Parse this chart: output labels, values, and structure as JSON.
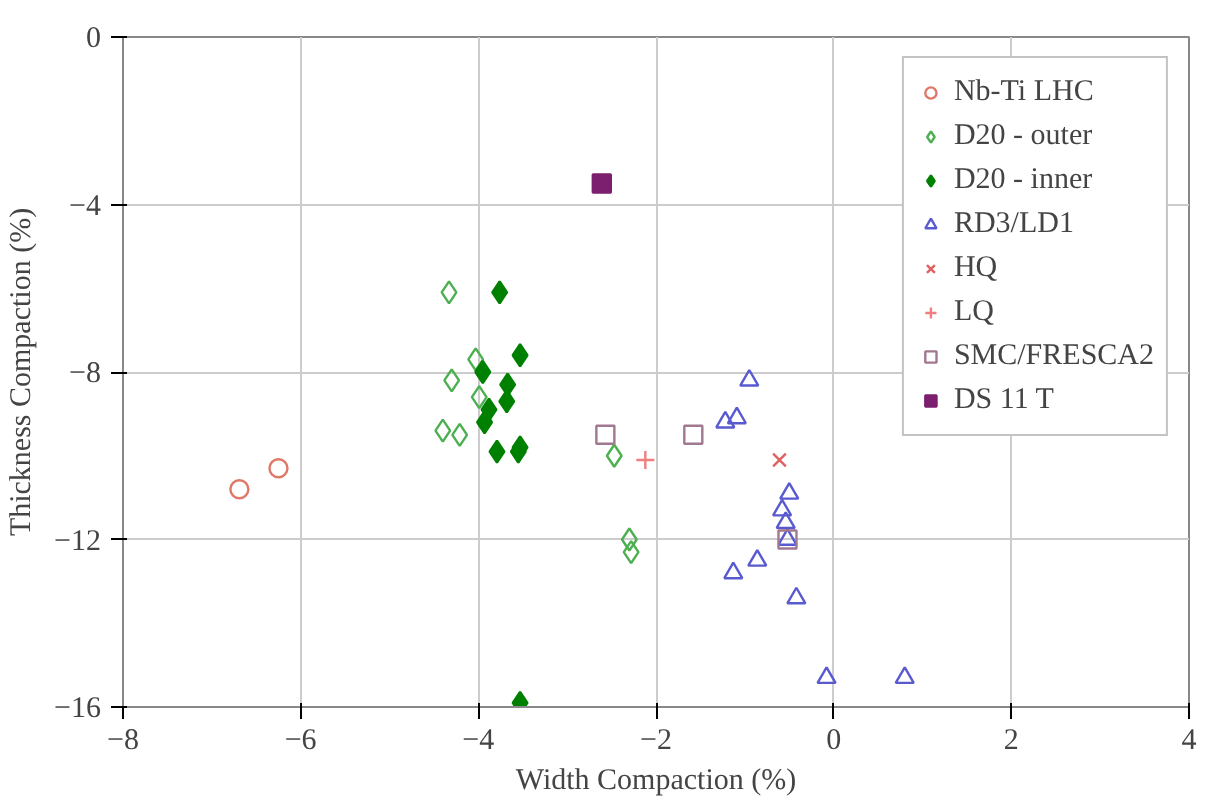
{
  "chart_data": {
    "type": "scatter",
    "xlabel": "Width Compaction (%)",
    "ylabel": "Thickness Compaction (%)",
    "xlim": [
      -8,
      4
    ],
    "ylim": [
      -16,
      0
    ],
    "xticks": [
      -8,
      -6,
      -4,
      -2,
      0,
      2,
      4
    ],
    "yticks": [
      -16,
      -12,
      -8,
      -4,
      0
    ],
    "grid": true,
    "legend": "top right",
    "series": [
      {
        "name": "Nb-Ti LHC",
        "color": "#e07868",
        "marker": "circle",
        "x": [
          -6.69,
          -6.25
        ],
        "values": [
          -10.8,
          -10.3
        ]
      },
      {
        "name": "D20 - outer",
        "color": "#4caf50",
        "marker": "diamond",
        "x": [
          -4.33,
          -4.03,
          -4.3,
          -3.99,
          -4.4,
          -4.21,
          -2.47,
          -2.3,
          -2.28
        ],
        "values": [
          -6.1,
          -7.7,
          -8.2,
          -8.6,
          -9.4,
          -9.5,
          -10.0,
          -12.0,
          -12.3
        ]
      },
      {
        "name": "D20 - inner",
        "color": "#008000",
        "marker": "diamond",
        "x": [
          -3.76,
          -3.53,
          -3.95,
          -3.67,
          -3.68,
          -3.88,
          -3.93,
          -3.79,
          -3.53,
          -3.55,
          -3.53
        ],
        "values": [
          -6.1,
          -7.6,
          -8.0,
          -8.3,
          -8.7,
          -8.9,
          -9.2,
          -9.9,
          -9.8,
          -9.9,
          -15.9
        ]
      },
      {
        "name": "RD3/LD1",
        "color": "#5a5ad0",
        "marker": "triangle",
        "x": [
          -0.95,
          -1.22,
          -1.09,
          -0.5,
          -0.58,
          -0.54,
          -0.52,
          -0.86,
          -1.13,
          -0.42,
          -0.08,
          0.8
        ],
        "values": [
          -8.2,
          -9.2,
          -9.1,
          -10.9,
          -11.3,
          -11.6,
          -12.0,
          -12.5,
          -12.8,
          -13.4,
          -15.3,
          -15.3
        ]
      },
      {
        "name": "HQ",
        "color": "#e06060",
        "marker": "cross",
        "x": [
          -0.61
        ],
        "values": [
          -10.1
        ]
      },
      {
        "name": "LQ",
        "color": "#f08080",
        "marker": "plus",
        "x": [
          -2.12
        ],
        "values": [
          -10.1
        ]
      },
      {
        "name": "SMC/FRESCA2",
        "color": "#a07890",
        "marker": "square",
        "x": [
          -2.57,
          -1.58,
          -0.52
        ],
        "values": [
          -9.5,
          -9.5,
          -12.0
        ]
      },
      {
        "name": "DS 11 T",
        "color": "#7b1f6e",
        "marker": "square",
        "x": [
          -2.61
        ],
        "values": [
          -3.5
        ]
      }
    ]
  }
}
